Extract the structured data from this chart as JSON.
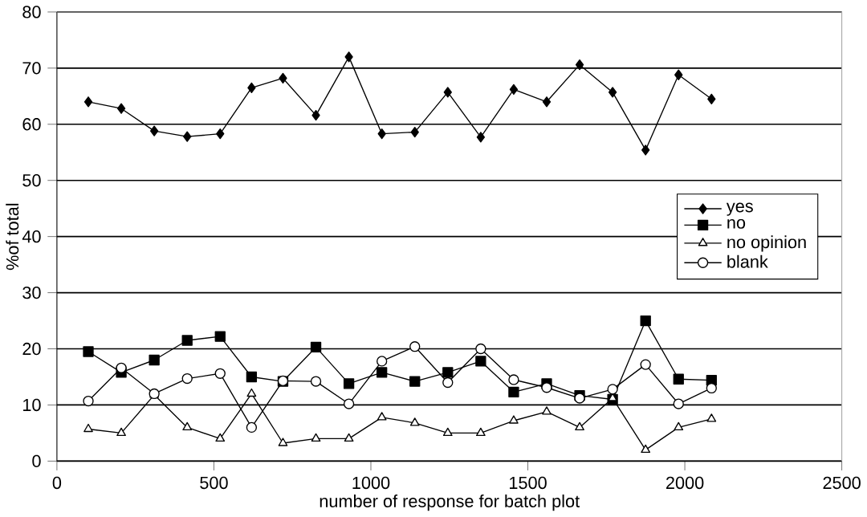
{
  "chart_data": {
    "type": "line",
    "xlabel": "number of response for batch plot",
    "ylabel": "%of total",
    "x": [
      100,
      205,
      310,
      415,
      520,
      620,
      720,
      825,
      930,
      1035,
      1140,
      1245,
      1350,
      1455,
      1560,
      1665,
      1770,
      1875,
      1980,
      2085
    ],
    "series": [
      {
        "name": "yes",
        "color": "#000000",
        "marker": "diamond",
        "values": [
          64,
          62.8,
          58.8,
          57.8,
          58.3,
          66.5,
          68.2,
          61.6,
          72,
          58.3,
          58.6,
          65.7,
          57.7,
          66.2,
          64,
          70.6,
          65.7,
          55.4,
          68.8,
          64.5
        ]
      },
      {
        "name": "no",
        "color": "#000000",
        "marker": "square",
        "values": [
          19.5,
          15.8,
          18,
          21.5,
          22.2,
          15,
          14.2,
          20.3,
          13.8,
          15.8,
          14.2,
          15.8,
          17.8,
          12.3,
          13.8,
          11.7,
          11,
          25,
          14.6,
          14.4
        ]
      },
      {
        "name": "no opinion",
        "color": "#000000",
        "marker": "triangle",
        "values": [
          5.7,
          5,
          11.8,
          6,
          4,
          12,
          3.2,
          4,
          4,
          7.8,
          6.8,
          5,
          5,
          7.2,
          8.8,
          6,
          11.2,
          2,
          6,
          7.5
        ]
      },
      {
        "name": "blank",
        "color": "#000000",
        "marker": "circle",
        "values": [
          10.7,
          16.6,
          12,
          14.7,
          15.6,
          6,
          14.3,
          14.2,
          10.2,
          17.8,
          20.4,
          14,
          20,
          14.5,
          13.1,
          11.2,
          12.8,
          17.2,
          10.2,
          13
        ]
      }
    ],
    "xlim": [
      0,
      2500
    ],
    "ylim": [
      0,
      80
    ],
    "xticks": [
      0,
      500,
      1000,
      1500,
      2000,
      2500
    ],
    "yticks": [
      0,
      10,
      20,
      30,
      40,
      50,
      60,
      70,
      80
    ],
    "grid": "y",
    "legend": "right",
    "line_style": "solid"
  }
}
